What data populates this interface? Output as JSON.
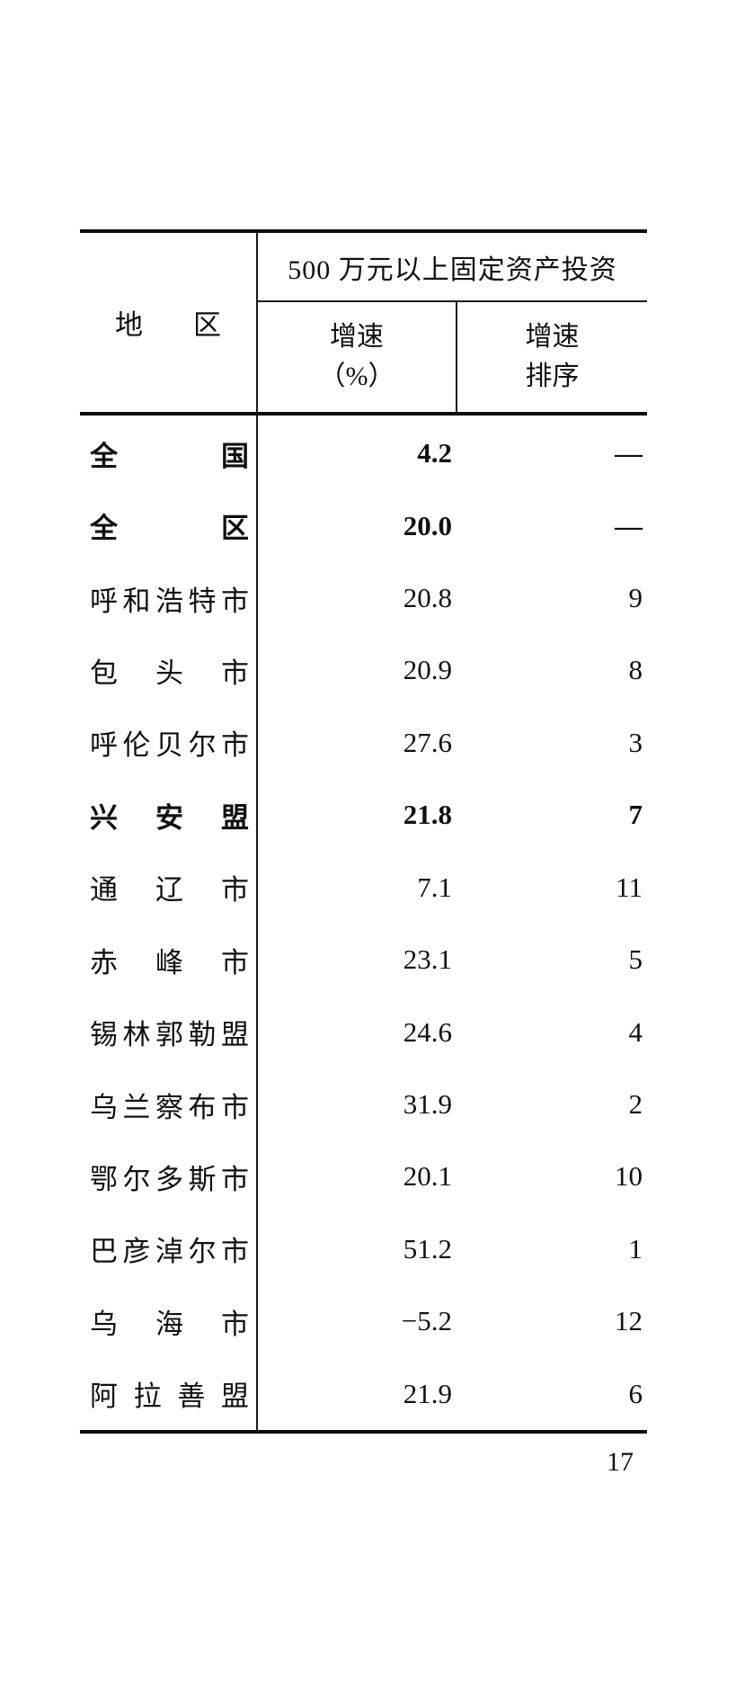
{
  "page": {
    "number": "17",
    "background": "#ffffff",
    "text_color": "#101010",
    "rule_color": "#0a0a0a"
  },
  "table": {
    "span_header": "500 万元以上固定资产投资",
    "region_header": "地区",
    "sub_columns": [
      {
        "line1": "增速",
        "line2": "（%）"
      },
      {
        "line1": "增速",
        "line2": "排序"
      }
    ],
    "rows": [
      {
        "region": "全国",
        "growth": "4.2",
        "rank": "—",
        "emphasis": true
      },
      {
        "region": "全区",
        "growth": "20.0",
        "rank": "—",
        "emphasis": true
      },
      {
        "region": "呼和浩特市",
        "growth": "20.8",
        "rank": "9",
        "emphasis": false
      },
      {
        "region": "包头市",
        "growth": "20.9",
        "rank": "8",
        "emphasis": false
      },
      {
        "region": "呼伦贝尔市",
        "growth": "27.6",
        "rank": "3",
        "emphasis": false
      },
      {
        "region": "兴安盟",
        "growth": "21.8",
        "rank": "7",
        "emphasis": true
      },
      {
        "region": "通辽市",
        "growth": "7.1",
        "rank": "11",
        "emphasis": false
      },
      {
        "region": "赤峰市",
        "growth": "23.1",
        "rank": "5",
        "emphasis": false
      },
      {
        "region": "锡林郭勒盟",
        "growth": "24.6",
        "rank": "4",
        "emphasis": false
      },
      {
        "region": "乌兰察布市",
        "growth": "31.9",
        "rank": "2",
        "emphasis": false
      },
      {
        "region": "鄂尔多斯市",
        "growth": "20.1",
        "rank": "10",
        "emphasis": false
      },
      {
        "region": "巴彦淖尔市",
        "growth": "51.2",
        "rank": "1",
        "emphasis": false
      },
      {
        "region": "乌海市",
        "growth": "−5.2",
        "rank": "12",
        "emphasis": false
      },
      {
        "region": "阿拉善盟",
        "growth": "21.9",
        "rank": "6",
        "emphasis": false
      }
    ]
  }
}
